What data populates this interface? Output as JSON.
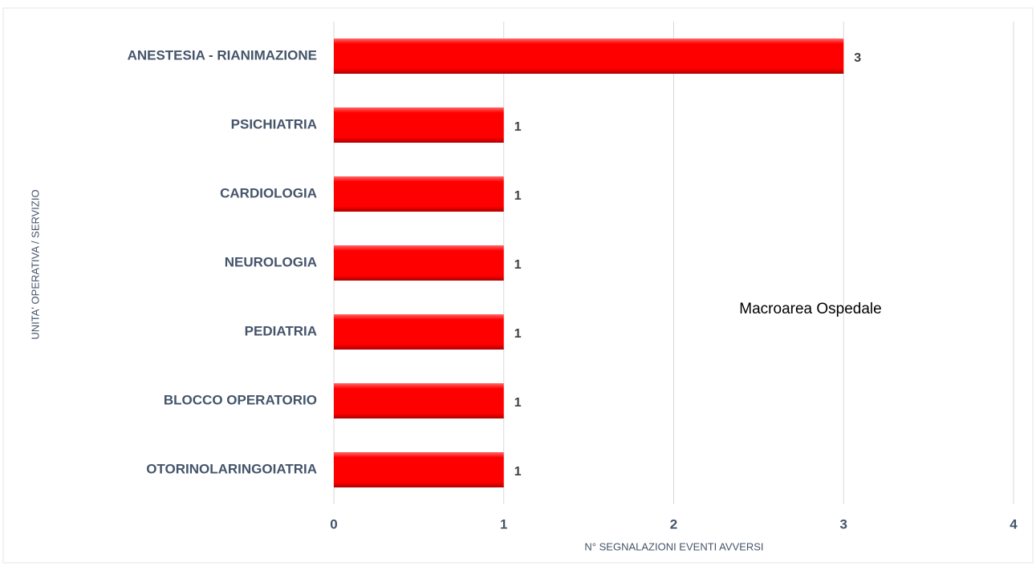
{
  "chart_data": {
    "type": "bar",
    "orientation": "horizontal",
    "categories": [
      "ANESTESIA - RIANIMAZIONE",
      "PSICHIATRIA",
      "CARDIOLOGIA",
      "NEUROLOGIA",
      "PEDIATRIA",
      "BLOCCO OPERATORIO",
      "OTORINOLARINGOIATRIA"
    ],
    "values": [
      3,
      1,
      1,
      1,
      1,
      1,
      1
    ],
    "color": "#ff0000",
    "xlim": [
      0,
      4
    ],
    "xticks": [
      0,
      1,
      2,
      3,
      4
    ],
    "grid": true,
    "xlabel": "N° SEGNALAZIONI EVENTI AVVERSI",
    "ylabel": "UNITA' OPERATIVA / SERVIZIO",
    "annotation": "Macroarea Ospedale"
  }
}
